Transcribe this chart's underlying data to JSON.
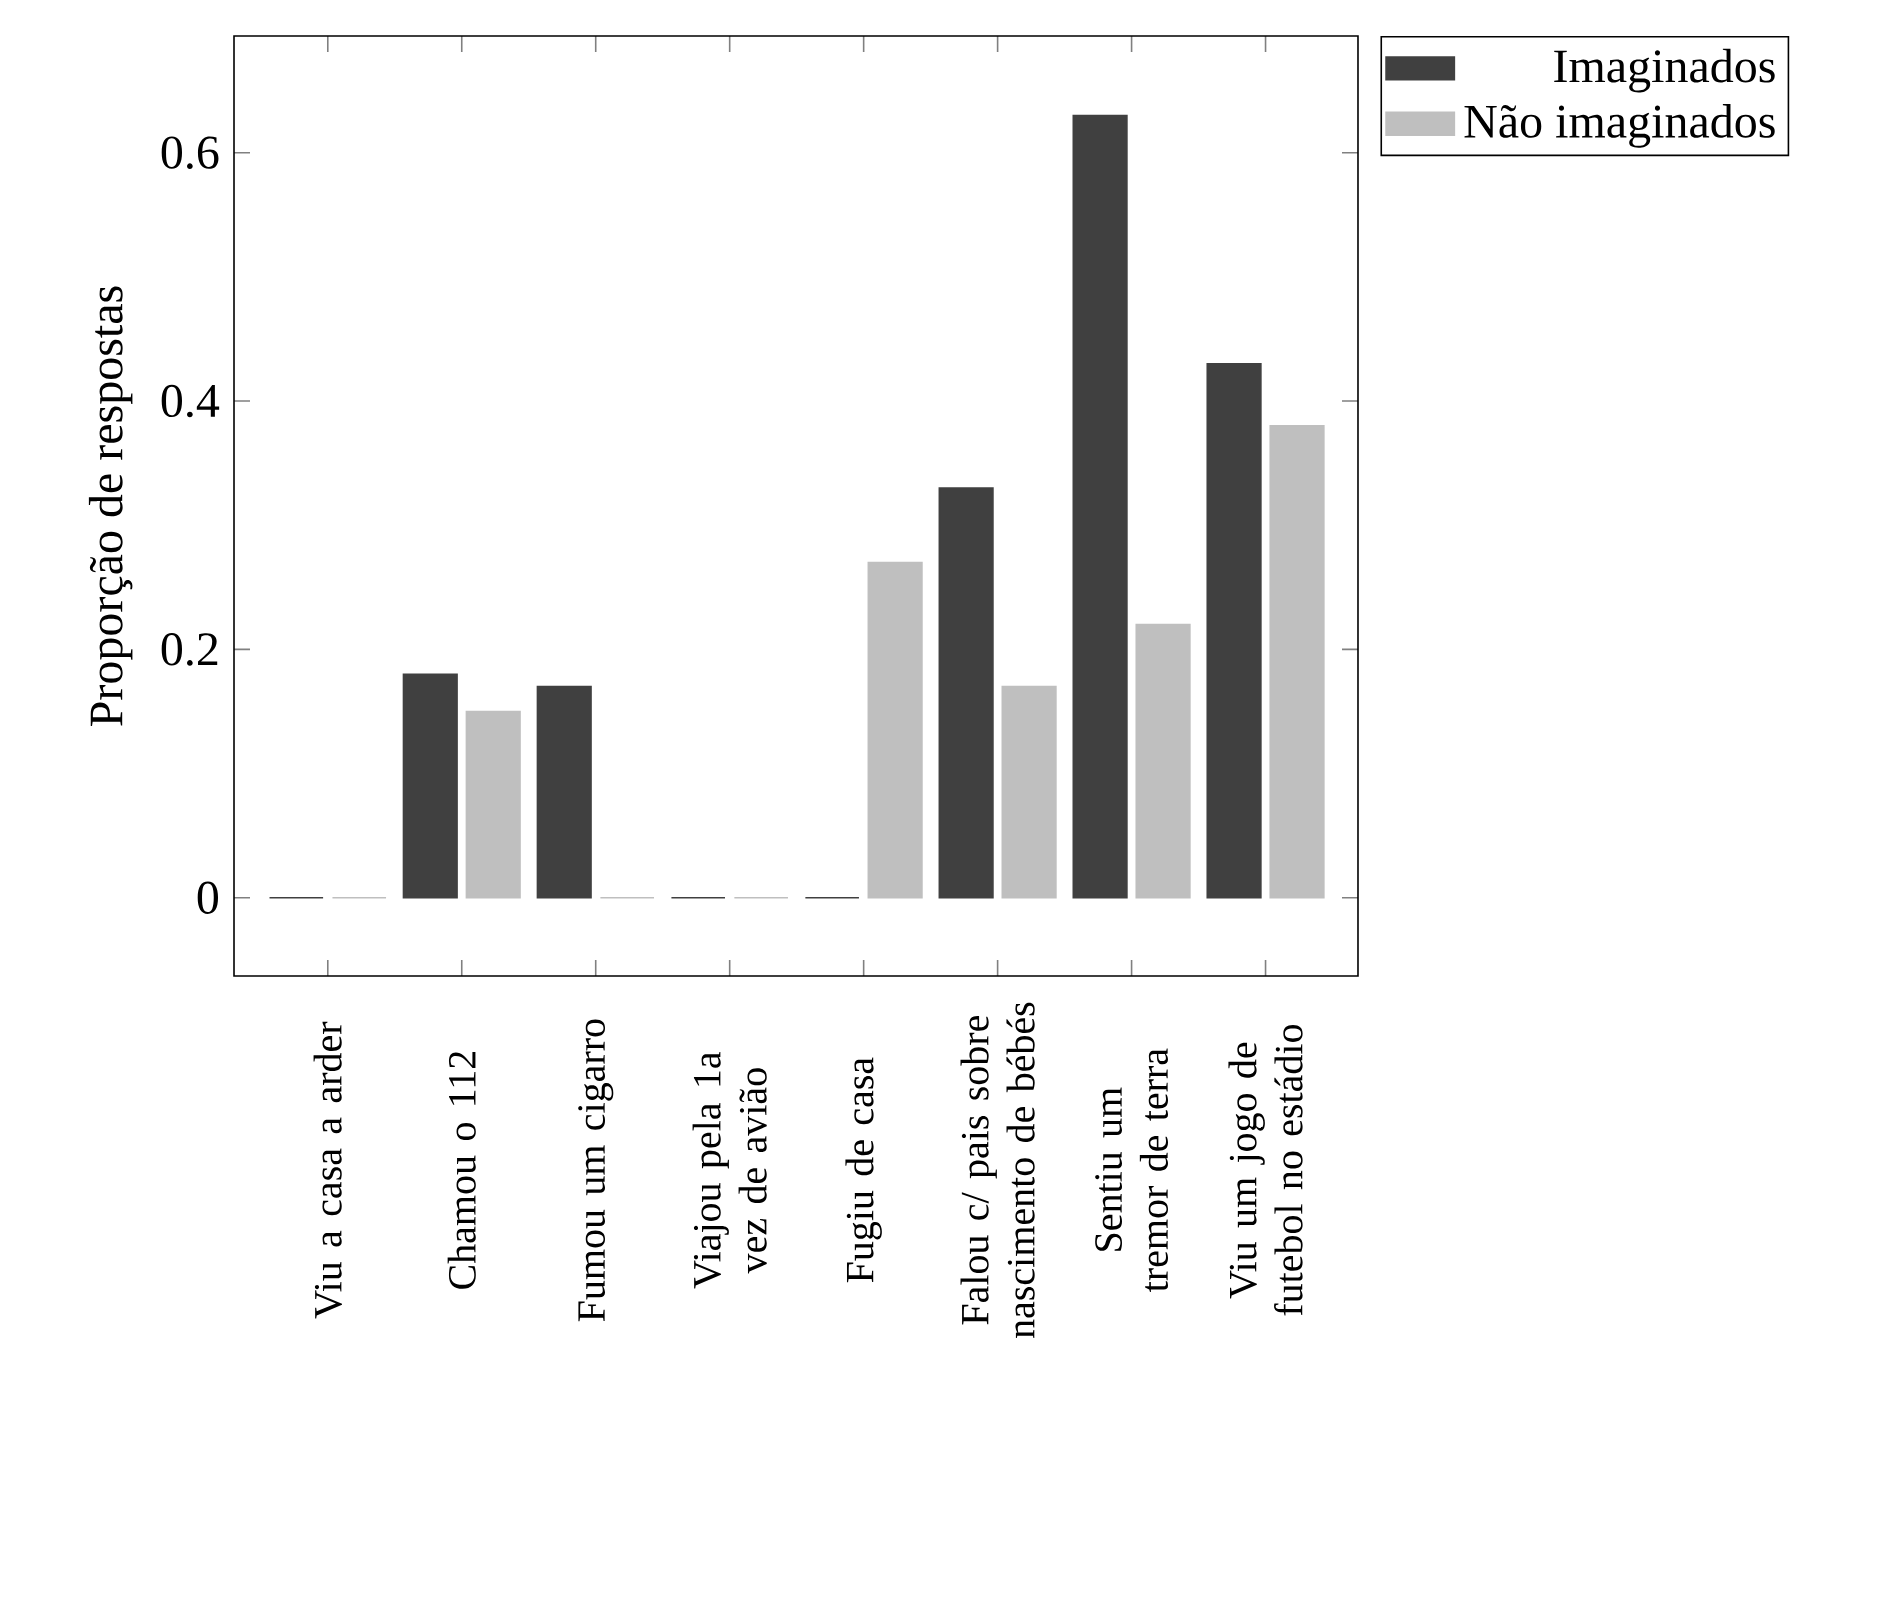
{
  "chart_data": {
    "type": "bar",
    "ylabel": "Proporção de respostas",
    "categories": [
      "Viu a casa a arder",
      "Chamou o 112",
      "Fumou um cigarro",
      "Viajou pela 1a vez de avião",
      "Fugiu de casa",
      "Falou c/ pais sobre nascimento de bébés",
      "Sentiu um tremor de terra",
      "Viu um jogo de futebol no estádio"
    ],
    "series": [
      {
        "name": "Imaginados",
        "color": "#404040",
        "values": [
          0,
          0.18,
          0.17,
          0,
          0,
          0.33,
          0.63,
          0.43
        ]
      },
      {
        "name": "Não imaginados",
        "color": "#bfbfbf",
        "values": [
          0,
          0.15,
          0,
          0,
          0.27,
          0.17,
          0.22,
          0.38
        ]
      }
    ],
    "ylim": [
      -0.063,
      0.694
    ],
    "yticks": [
      0,
      0.2,
      0.4,
      0.6
    ],
    "grid": false,
    "legend": "top right"
  }
}
